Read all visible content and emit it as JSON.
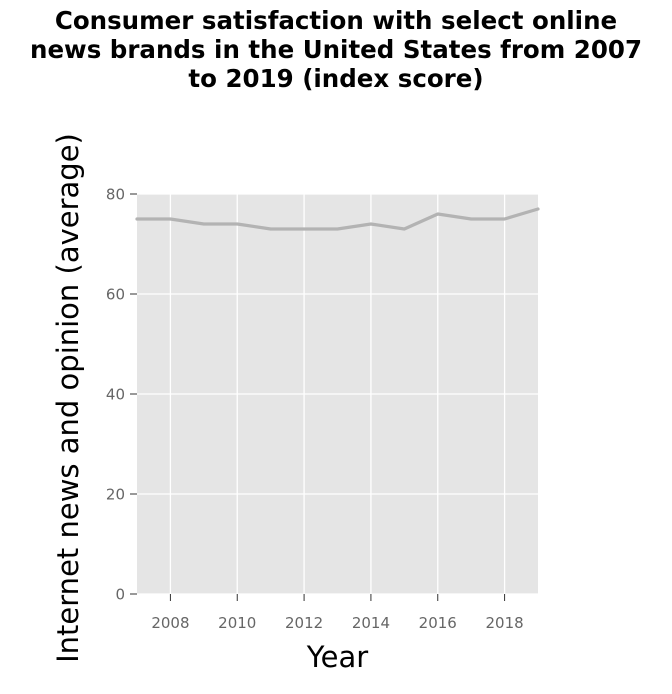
{
  "chart_data": {
    "type": "line",
    "title_lines": [
      "Consumer satisfaction with select online",
      "news brands in the United States from 2007",
      "to 2019 (index score)"
    ],
    "xlabel": "Year",
    "ylabel": "Internet news and opinion (average)",
    "xlim": [
      2007,
      2019
    ],
    "ylim": [
      0,
      80
    ],
    "x_ticks": [
      2008,
      2010,
      2012,
      2014,
      2016,
      2018
    ],
    "y_ticks": [
      0,
      20,
      40,
      60,
      80
    ],
    "grid": true,
    "series": [
      {
        "x": [
          2007,
          2008,
          2009,
          2010,
          2011,
          2012,
          2013,
          2014,
          2015,
          2016,
          2017,
          2018,
          2019
        ],
        "values": [
          75,
          75,
          74,
          74,
          73,
          73,
          73,
          74,
          73,
          76,
          75,
          75,
          77
        ]
      }
    ],
    "colors": {
      "panel": "#e5e5e5",
      "grid": "#ffffff",
      "line": "#b3b3b3",
      "tick": "#666666"
    }
  }
}
